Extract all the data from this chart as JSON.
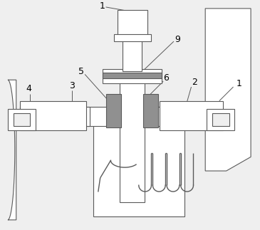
{
  "bg_color": "#efefef",
  "line_color": "#5a5a5a",
  "dark_fill": "#909090",
  "hatched_fill": "#b0b0b0",
  "white_fill": "#ffffff",
  "figsize": [
    3.65,
    3.23
  ],
  "dpi": 100
}
